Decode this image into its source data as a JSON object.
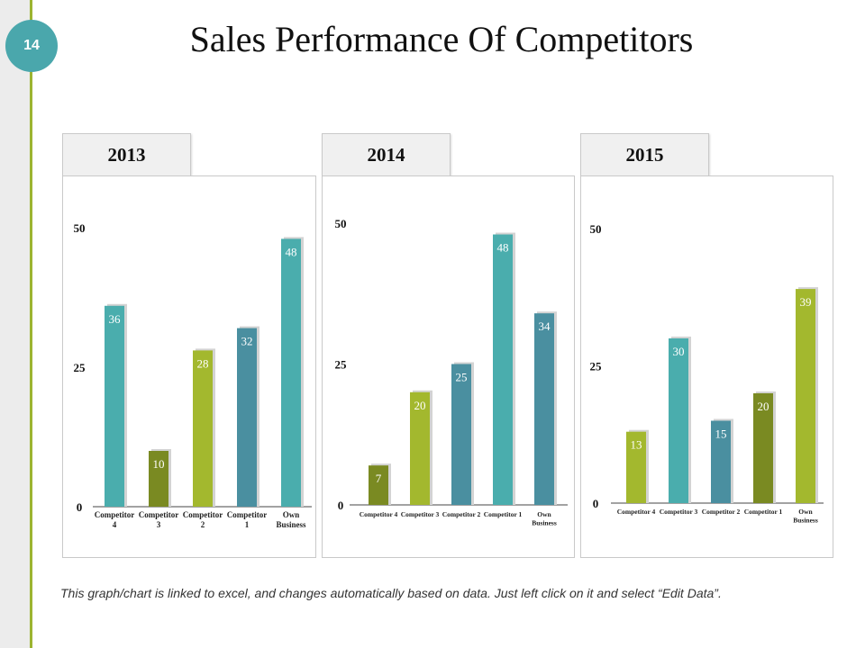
{
  "slide": {
    "number": "14",
    "title": "Sales Performance Of Competitors"
  },
  "footer": {
    "note": "This graph/chart is linked to excel, and changes automatically based on data. Just left click on it and select “Edit Data”."
  },
  "colors": {
    "teal": "#4aadad",
    "olive": "#7a8a22",
    "lime": "#a3b82e",
    "steel": "#4a8fa0"
  },
  "chart_data": [
    {
      "type": "bar",
      "title": "2013",
      "categories": [
        "Competitor 4",
        "Competitor 3",
        "Competitor 2",
        "Competitor 1",
        "Own Business"
      ],
      "values": [
        36,
        10,
        28,
        32,
        48
      ],
      "bar_colors": [
        "#4aadad",
        "#7a8a22",
        "#a3b82e",
        "#4a8fa0",
        "#4aadad"
      ],
      "yticks": [
        0,
        25,
        50
      ],
      "ylim": [
        0,
        50
      ]
    },
    {
      "type": "bar",
      "title": "2014",
      "categories": [
        "Competitor 4",
        "Competitor 3",
        "Competitor 2",
        "Competitor 1",
        "Own Business"
      ],
      "values": [
        7,
        20,
        25,
        48,
        34
      ],
      "bar_colors": [
        "#7a8a22",
        "#a3b82e",
        "#4a8fa0",
        "#4aadad",
        "#4a8fa0"
      ],
      "yticks": [
        0,
        25,
        50
      ],
      "ylim": [
        0,
        50
      ]
    },
    {
      "type": "bar",
      "title": "2015",
      "categories": [
        "Competitor 4",
        "Competitor 3",
        "Competitor 2",
        "Competitor 1",
        "Own Business"
      ],
      "values": [
        13,
        30,
        15,
        20,
        39
      ],
      "bar_colors": [
        "#a3b82e",
        "#4aadad",
        "#4a8fa0",
        "#7a8a22",
        "#a3b82e"
      ],
      "yticks": [
        0,
        25,
        50
      ],
      "ylim": [
        0,
        50
      ]
    }
  ]
}
